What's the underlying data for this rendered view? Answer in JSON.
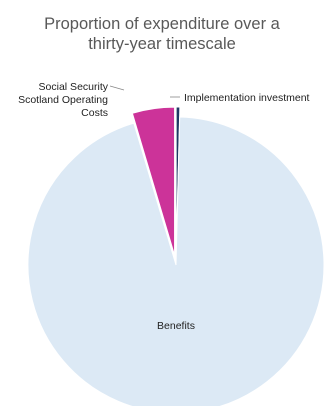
{
  "chart_data": {
    "type": "pie",
    "title_lines": [
      "Proportion of expenditure over a",
      "thirty-year timescale"
    ],
    "slices": [
      {
        "label": "Implementation investment",
        "value": 0.4,
        "color": "#1f3864",
        "exploded": true
      },
      {
        "label": "Benefits",
        "value": 95.0,
        "color": "#dce9f5",
        "exploded": false
      },
      {
        "label": "Social Security Scotland Operating Costs",
        "label_lines": [
          "Social Security",
          "Scotland Operating",
          "Costs"
        ],
        "value": 4.6,
        "color": "#cc3399",
        "exploded": true
      }
    ],
    "legend": "none"
  }
}
